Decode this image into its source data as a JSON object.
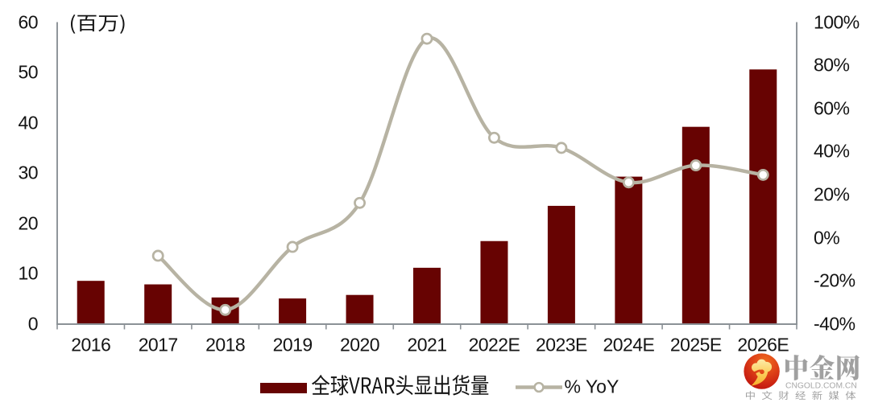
{
  "chart_data": {
    "type": "combo-bar-line",
    "title": "",
    "categories": [
      "2016",
      "2017",
      "2018",
      "2019",
      "2020",
      "2021",
      "2022E",
      "2023E",
      "2024E",
      "2025E",
      "2026E"
    ],
    "series": [
      {
        "name": "全球VRAR头显出货量",
        "type": "bar",
        "axis": "left",
        "values": [
          8.6,
          7.9,
          5.3,
          5.1,
          5.8,
          11.2,
          16.5,
          23.5,
          29.3,
          39.2,
          50.6
        ]
      },
      {
        "name": "% YoY",
        "type": "line",
        "axis": "right",
        "values": [
          null,
          -8.3,
          -33.4,
          -4.2,
          16.2,
          92.3,
          46.4,
          41.7,
          25.7,
          33.6,
          29.2
        ]
      }
    ],
    "axes": {
      "left": {
        "title": "(百万)",
        "min": 0,
        "max": 60,
        "ticks": [
          "60",
          "50",
          "40",
          "30",
          "20",
          "10",
          "0"
        ]
      },
      "right": {
        "min": -40,
        "max": 100,
        "ticks": [
          "100%",
          "80%",
          "60%",
          "40%",
          "20%",
          "0%",
          "-20%",
          "-40%"
        ]
      }
    },
    "legend_position": "bottom",
    "grid": false
  },
  "legend": {
    "bar_label": "全球VRAR头显出货量",
    "line_label": "% YoY"
  },
  "watermark": {
    "brand": "中金网",
    "domain": "CNGOLD.COM.CN",
    "tagline": "中文财经新媒体",
    "icon": "cngold-cloud-swirl-icon"
  },
  "colors": {
    "bar": "#670302",
    "line": "#b7b3a3",
    "axis": "#8b9196",
    "text": "#141414",
    "watermark_text": "#a3a3a3",
    "background": "#ffffff"
  }
}
